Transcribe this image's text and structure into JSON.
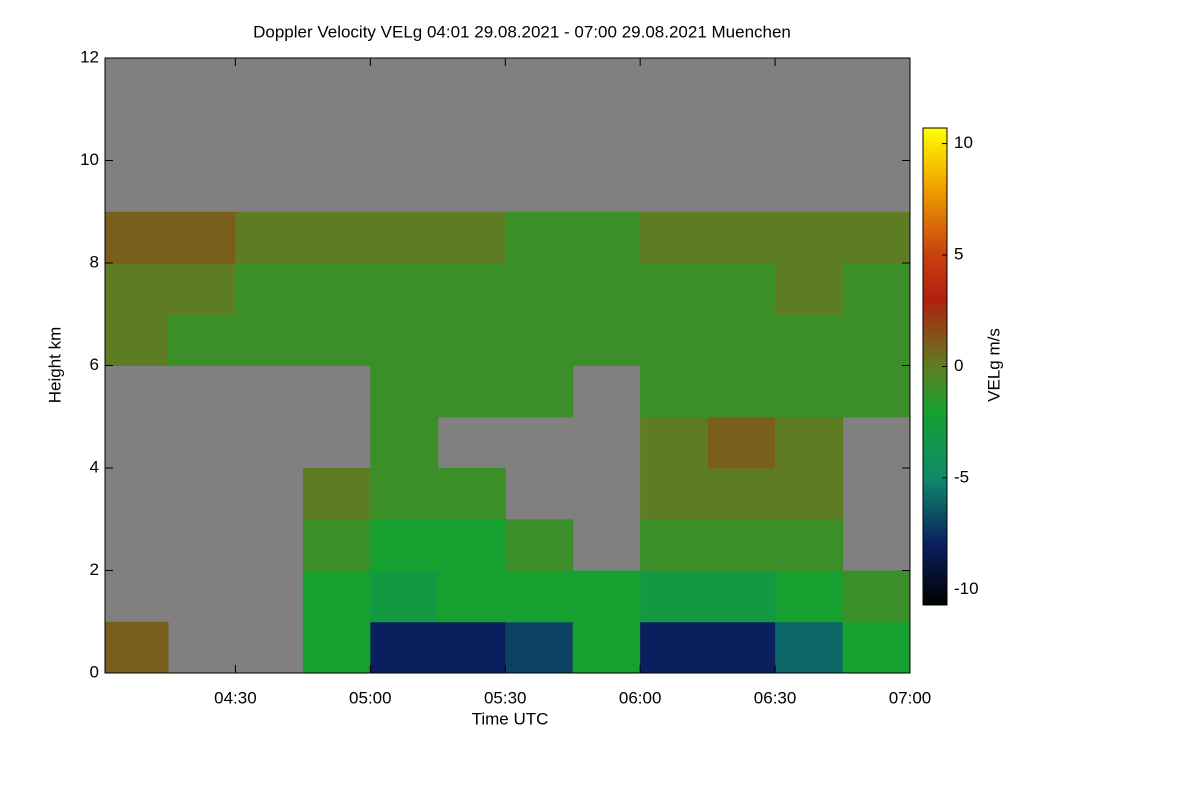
{
  "chart_data": {
    "type": "heatmap",
    "title": "Doppler Velocity VELg   04:01 29.08.2021 - 07:00 29.08.2021 Muenchen",
    "x_label": "Time UTC",
    "y_label": "Height km",
    "colorbar_label": "VELg m/s",
    "xbins": [
      4,
      4.25,
      4.5,
      4.75,
      5,
      5.25,
      5.5,
      5.75,
      6,
      6.25,
      6.5,
      6.75,
      7
    ],
    "ybins": [
      0,
      1,
      2,
      3,
      4,
      5,
      6,
      7,
      8,
      9,
      10,
      11,
      12
    ],
    "z": [
      [
        1,
        null,
        null,
        -2,
        -8,
        -8,
        -7,
        -2,
        -8,
        -8,
        -6,
        -2
      ],
      [
        null,
        null,
        null,
        -2,
        -3,
        -2,
        -2,
        -2,
        -3,
        -3,
        -2,
        -1
      ],
      [
        null,
        null,
        null,
        -1,
        -2,
        -2,
        -1,
        null,
        -1,
        -1,
        -1,
        null
      ],
      [
        null,
        null,
        null,
        0,
        -1,
        -1,
        null,
        null,
        0,
        0,
        0,
        null
      ],
      [
        null,
        null,
        null,
        null,
        -1,
        null,
        null,
        null,
        0,
        1,
        0,
        null
      ],
      [
        null,
        null,
        null,
        null,
        -1,
        -1,
        -1,
        null,
        -1,
        -1,
        -1,
        -1
      ],
      [
        0,
        -1,
        -1,
        -1,
        -1,
        -1,
        -1,
        -1,
        -1,
        -1,
        -1,
        -1
      ],
      [
        0,
        0,
        -1,
        -1,
        -1,
        -1,
        -1,
        -1,
        -1,
        -1,
        0,
        -1
      ],
      [
        1,
        1,
        0,
        0,
        0,
        0,
        -1,
        -1,
        0,
        0,
        0,
        0
      ],
      [
        null,
        null,
        null,
        null,
        null,
        null,
        null,
        null,
        null,
        null,
        null,
        null
      ],
      [
        null,
        null,
        null,
        null,
        null,
        null,
        null,
        null,
        null,
        null,
        null,
        null
      ],
      [
        null,
        null,
        null,
        null,
        null,
        null,
        null,
        null,
        null,
        null,
        null,
        null
      ]
    ],
    "missing_color": "#808080",
    "xlim": [
      4.0167,
      7.0
    ],
    "xticks": [
      {
        "value": 4.5,
        "label": "04:30"
      },
      {
        "value": 5,
        "label": "05:00"
      },
      {
        "value": 5.5,
        "label": "05:30"
      },
      {
        "value": 6,
        "label": "06:00"
      },
      {
        "value": 6.5,
        "label": "06:30"
      },
      {
        "value": 7,
        "label": "07:00"
      }
    ],
    "ylim": [
      0,
      12
    ],
    "yticks": [
      0,
      2,
      4,
      6,
      8,
      10,
      12
    ],
    "clim": [
      -10.7,
      10.7
    ],
    "cticks": [
      -10,
      -5,
      0,
      5,
      10
    ],
    "colorscale": [
      {
        "value": -10.7,
        "color": "#000000"
      },
      {
        "value": -8,
        "color": "#0a1f5e"
      },
      {
        "value": -5,
        "color": "#0f8a6a"
      },
      {
        "value": -2,
        "color": "#16a030"
      },
      {
        "value": 0,
        "color": "#5e7d22"
      },
      {
        "value": 3,
        "color": "#b02010"
      },
      {
        "value": 5,
        "color": "#c84010"
      },
      {
        "value": 8,
        "color": "#f0a000"
      },
      {
        "value": 10.7,
        "color": "#ffff00"
      }
    ]
  }
}
